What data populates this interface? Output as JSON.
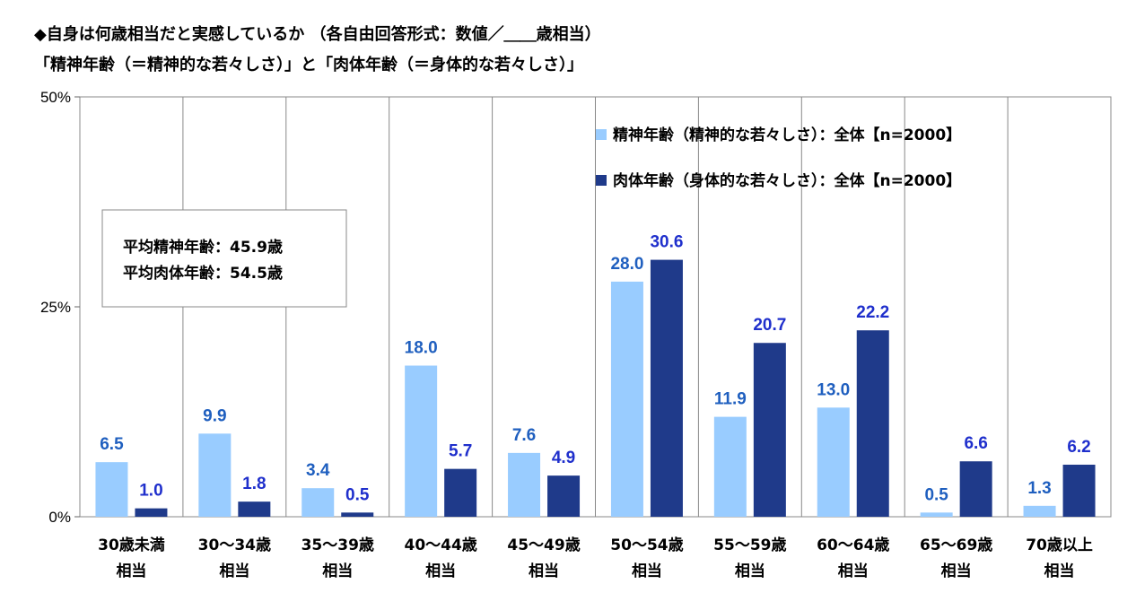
{
  "title_line1": "◆自身は何歳相当だと実感しているか （各自由回答形式：数値／＿＿歳相当）",
  "title_line2": "「精神年齢（＝精神的な若々しさ）」と「肉体年齢（＝身体的な若々しさ）」",
  "averages": {
    "mental": "平均精神年齢：45.9歳",
    "physical": "平均肉体年齢：54.5歳"
  },
  "colors": {
    "mental": "#99ccff",
    "physical": "#1f3a8a",
    "mental_label": "#1f5fbf",
    "physical_label": "#1f2fcc"
  },
  "chart_data": {
    "type": "bar",
    "categories": [
      [
        "30歳未満",
        "相当"
      ],
      [
        "30～34歳",
        "相当"
      ],
      [
        "35～39歳",
        "相当"
      ],
      [
        "40～44歳",
        "相当"
      ],
      [
        "45～49歳",
        "相当"
      ],
      [
        "50～54歳",
        "相当"
      ],
      [
        "55～59歳",
        "相当"
      ],
      [
        "60～64歳",
        "相当"
      ],
      [
        "65～69歳",
        "相当"
      ],
      [
        "70歳以上",
        "相当"
      ]
    ],
    "series": [
      {
        "name": "精神年齢（精神的な若々しさ）：全体【n=2000】",
        "values": [
          6.5,
          9.9,
          3.4,
          18.0,
          7.6,
          28.0,
          11.9,
          13.0,
          0.5,
          1.3
        ]
      },
      {
        "name": "肉体年齢（身体的な若々しさ）：全体【n=2000】",
        "values": [
          1.0,
          1.8,
          0.5,
          5.7,
          4.9,
          30.6,
          20.7,
          22.2,
          6.6,
          6.2
        ]
      }
    ],
    "ylim": [
      0,
      50
    ],
    "yticks": [
      "0%",
      "25%",
      "50%"
    ],
    "ytick_values": [
      0,
      25,
      50
    ],
    "legend_position": "top-right",
    "grid": "vertical separators"
  }
}
